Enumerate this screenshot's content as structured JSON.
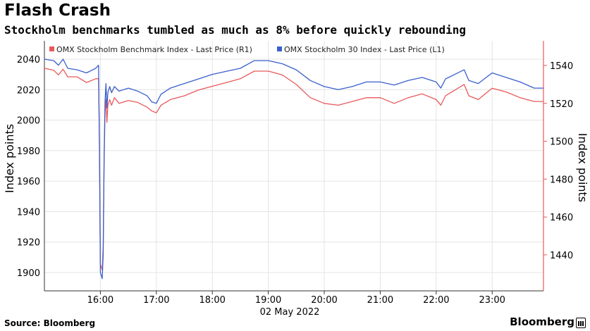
{
  "title": "Flash Crash",
  "subtitle": "Stockholm benchmarks tumbled as much as 8% before quickly rebounding",
  "source": "Source: Bloomberg",
  "brand": "Bloomberg",
  "chart_data": {
    "type": "line",
    "xlabel": "02 May 2022",
    "y_left_label": "Index points",
    "y_right_label": "Index points",
    "x_ticks": [
      "16:00",
      "17:00",
      "18:00",
      "19:00",
      "20:00",
      "21:00",
      "22:00",
      "23:00"
    ],
    "x_range": [
      "15:00",
      "23:55"
    ],
    "y_left_ticks": [
      1900,
      1920,
      1940,
      1960,
      1980,
      2000,
      2020,
      2040
    ],
    "y_left_range": [
      1888,
      2052
    ],
    "y_right_ticks": [
      1440,
      1460,
      1480,
      1500,
      1520,
      1540
    ],
    "y_right_range": [
      1421,
      1553
    ],
    "grid": true,
    "legend_position": "top-left",
    "colors": {
      "r1": "#e8595c",
      "l1": "#3a5fcd",
      "right_axis": "#e8595c"
    },
    "series": [
      {
        "name": "OMX Stockholm Benchmark Index - Last Price (R1)",
        "axis": "right",
        "color": "#e8595c",
        "points": [
          [
            "15:00",
            1538.5
          ],
          [
            "15:10",
            1537.5
          ],
          [
            "15:15",
            1535
          ],
          [
            "15:20",
            1538
          ],
          [
            "15:25",
            1534
          ],
          [
            "15:35",
            1534
          ],
          [
            "15:45",
            1531
          ],
          [
            "15:55",
            1533
          ],
          [
            "15:58",
            1533
          ],
          [
            "15:59",
            1500
          ],
          [
            "16:00",
            1435
          ],
          [
            "16:02",
            1432
          ],
          [
            "16:03",
            1445
          ],
          [
            "16:04",
            1490
          ],
          [
            "16:05",
            1515
          ],
          [
            "16:06",
            1522
          ],
          [
            "16:07",
            1510
          ],
          [
            "16:08",
            1519
          ],
          [
            "16:10",
            1522
          ],
          [
            "16:12",
            1519
          ],
          [
            "16:15",
            1523
          ],
          [
            "16:20",
            1520
          ],
          [
            "16:30",
            1521.5
          ],
          [
            "16:40",
            1520.5
          ],
          [
            "16:50",
            1518
          ],
          [
            "16:55",
            1516
          ],
          [
            "17:00",
            1515
          ],
          [
            "17:05",
            1519
          ],
          [
            "17:15",
            1522
          ],
          [
            "17:30",
            1524
          ],
          [
            "17:45",
            1527
          ],
          [
            "18:00",
            1529
          ],
          [
            "18:15",
            1531
          ],
          [
            "18:30",
            1533
          ],
          [
            "18:45",
            1537
          ],
          [
            "19:00",
            1537
          ],
          [
            "19:15",
            1535
          ],
          [
            "19:30",
            1530
          ],
          [
            "19:45",
            1523
          ],
          [
            "20:00",
            1520
          ],
          [
            "20:15",
            1519
          ],
          [
            "20:30",
            1521
          ],
          [
            "20:45",
            1523
          ],
          [
            "21:00",
            1523
          ],
          [
            "21:15",
            1520
          ],
          [
            "21:30",
            1523
          ],
          [
            "21:45",
            1525
          ],
          [
            "22:00",
            1522
          ],
          [
            "22:05",
            1519
          ],
          [
            "22:10",
            1524
          ],
          [
            "22:20",
            1527
          ],
          [
            "22:30",
            1530
          ],
          [
            "22:35",
            1524
          ],
          [
            "22:45",
            1522
          ],
          [
            "23:00",
            1528
          ],
          [
            "23:15",
            1526
          ],
          [
            "23:30",
            1523
          ],
          [
            "23:45",
            1521
          ],
          [
            "23:55",
            1521
          ]
        ]
      },
      {
        "name": "OMX Stockholm 30 Index - Last Price (L1)",
        "axis": "left",
        "color": "#3a5fcd",
        "points": [
          [
            "15:00",
            2040
          ],
          [
            "15:10",
            2039
          ],
          [
            "15:15",
            2036
          ],
          [
            "15:20",
            2040
          ],
          [
            "15:25",
            2034
          ],
          [
            "15:35",
            2033
          ],
          [
            "15:45",
            2031
          ],
          [
            "15:55",
            2034
          ],
          [
            "15:58",
            2036
          ],
          [
            "15:59",
            1980
          ],
          [
            "16:00",
            1900
          ],
          [
            "16:02",
            1896
          ],
          [
            "16:03",
            1912
          ],
          [
            "16:04",
            1975
          ],
          [
            "16:05",
            2012
          ],
          [
            "16:06",
            2024
          ],
          [
            "16:07",
            2008
          ],
          [
            "16:08",
            2018
          ],
          [
            "16:10",
            2022
          ],
          [
            "16:12",
            2018
          ],
          [
            "16:15",
            2022
          ],
          [
            "16:20",
            2019
          ],
          [
            "16:30",
            2021
          ],
          [
            "16:40",
            2019
          ],
          [
            "16:50",
            2016
          ],
          [
            "16:55",
            2012
          ],
          [
            "17:00",
            2011
          ],
          [
            "17:05",
            2017
          ],
          [
            "17:15",
            2021
          ],
          [
            "17:30",
            2024
          ],
          [
            "17:45",
            2027
          ],
          [
            "18:00",
            2030
          ],
          [
            "18:15",
            2032
          ],
          [
            "18:30",
            2034
          ],
          [
            "18:45",
            2039
          ],
          [
            "19:00",
            2039
          ],
          [
            "19:15",
            2037
          ],
          [
            "19:30",
            2033
          ],
          [
            "19:45",
            2026
          ],
          [
            "20:00",
            2022
          ],
          [
            "20:15",
            2020
          ],
          [
            "20:30",
            2022
          ],
          [
            "20:45",
            2025
          ],
          [
            "21:00",
            2025
          ],
          [
            "21:15",
            2023
          ],
          [
            "21:30",
            2026
          ],
          [
            "21:45",
            2028
          ],
          [
            "22:00",
            2025
          ],
          [
            "22:05",
            2021
          ],
          [
            "22:10",
            2027
          ],
          [
            "22:20",
            2030
          ],
          [
            "22:30",
            2033
          ],
          [
            "22:35",
            2026
          ],
          [
            "22:45",
            2024
          ],
          [
            "23:00",
            2031
          ],
          [
            "23:15",
            2028
          ],
          [
            "23:30",
            2025
          ],
          [
            "23:45",
            2021
          ],
          [
            "23:55",
            2021
          ]
        ]
      }
    ]
  }
}
